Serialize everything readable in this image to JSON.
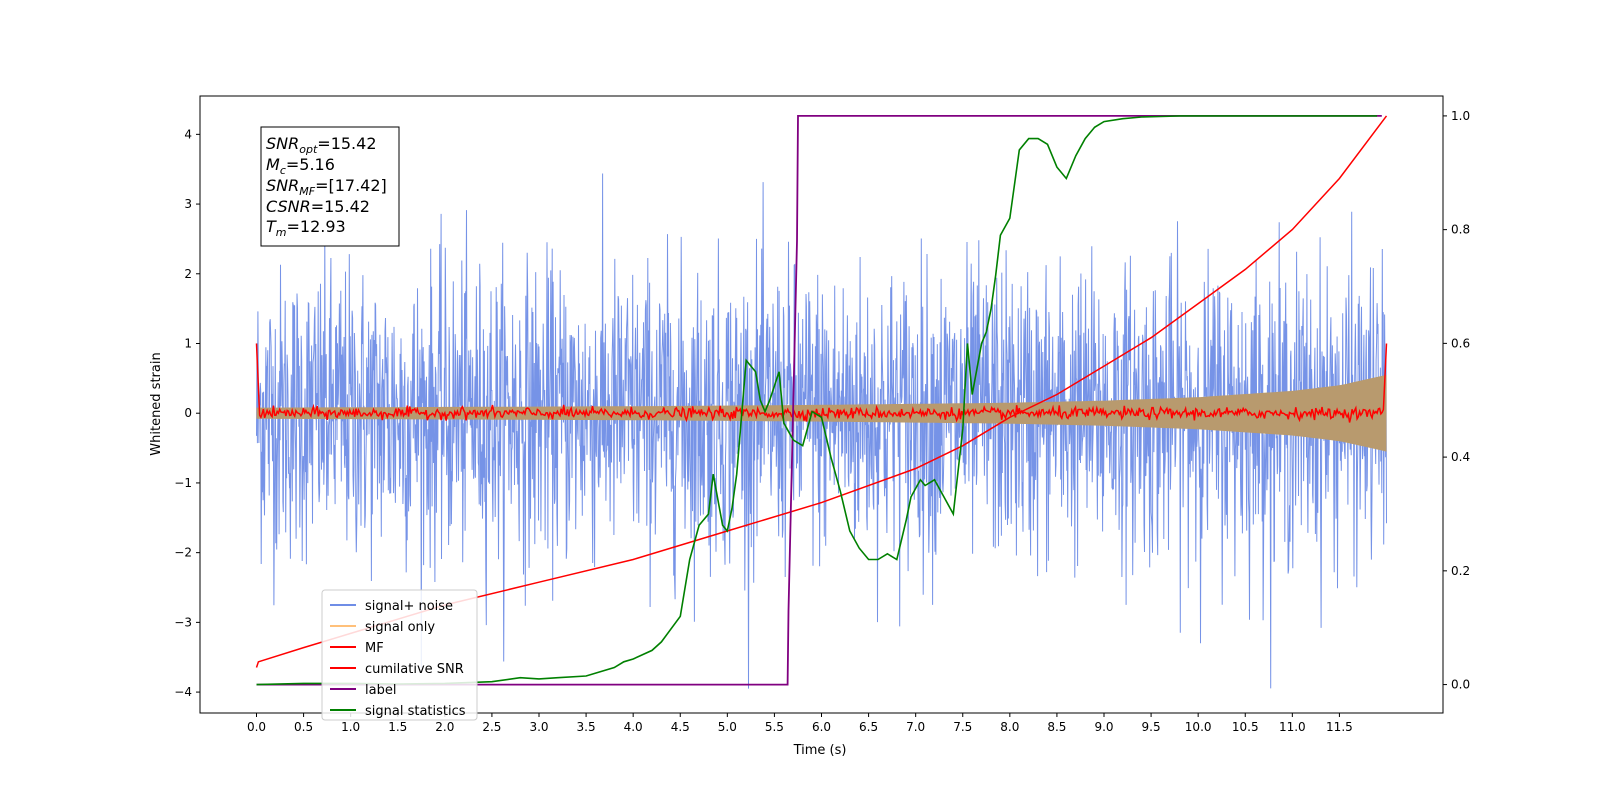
{
  "chart_data": {
    "type": "line",
    "xlabel": "Time (s)",
    "ylabel": "Whitened strain",
    "xlim": [
      -0.6,
      12.6
    ],
    "ylim": [
      -4.3,
      4.55
    ],
    "ylim_right": [
      -0.05,
      1.035
    ],
    "x_ticks": [
      "0.0",
      "0.5",
      "1.0",
      "1.5",
      "2.0",
      "2.5",
      "3.0",
      "3.5",
      "4.0",
      "4.5",
      "5.0",
      "5.5",
      "6.0",
      "6.5",
      "7.0",
      "7.5",
      "8.0",
      "8.5",
      "9.0",
      "9.5",
      "10.0",
      "10.5",
      "11.0",
      "11.5"
    ],
    "y_ticks_left": [
      "4",
      "3",
      "2",
      "1",
      "0",
      "−1",
      "−2",
      "−3",
      "−4"
    ],
    "y_ticks_right": [
      "1.0",
      "0.8",
      "0.6",
      "0.4",
      "0.2",
      "0.0"
    ],
    "annotation": {
      "snr_opt": {
        "label": "SNR",
        "sub": "opt",
        "value": "=15.42"
      },
      "mc": {
        "label": "M",
        "sub": "c",
        "value": "=5.16"
      },
      "snr_mf": {
        "label": "SNR",
        "sub": "MF",
        "value": "=[17.42]"
      },
      "csnr": {
        "label": "CSNR",
        "value": "=15.42"
      },
      "tm": {
        "label": "T",
        "sub": "m",
        "value": "=12.93"
      }
    },
    "legend_position": "lower-left",
    "legend": [
      {
        "name": "signal+ noise",
        "color": "#6f8de6"
      },
      {
        "name": "signal only",
        "color": "#ffc07a"
      },
      {
        "name": "MF",
        "color": "#ff0000"
      },
      {
        "name": "cumilative SNR",
        "color": "#ff0000"
      },
      {
        "name": "label",
        "color": "#800080"
      },
      {
        "name": "signal statistics",
        "color": "#008000"
      }
    ],
    "series": [
      {
        "key": "signal_noise",
        "axis": "left",
        "color": "#6f8de6",
        "noise_std": 1.05,
        "x_range": [
          0.0,
          12.0
        ],
        "approx_extremes": [
          4.15,
          -3.9
        ]
      },
      {
        "key": "signal_only",
        "axis": "left",
        "color": "#b89a6e",
        "envelope": {
          "x": [
            0,
            2,
            4,
            6,
            8,
            9,
            10,
            11,
            11.5,
            12.0
          ],
          "amp": [
            0.08,
            0.09,
            0.1,
            0.12,
            0.15,
            0.18,
            0.23,
            0.32,
            0.4,
            0.55
          ]
        }
      },
      {
        "key": "mf",
        "axis": "left",
        "color": "#ff0000",
        "start_value": 1.0,
        "end_value": 1.0,
        "noise_std": 0.04
      },
      {
        "key": "cumulative_snr",
        "axis": "right",
        "color": "#ff0000",
        "x": [
          0.0,
          0.02,
          0.5,
          1,
          2,
          3,
          4,
          5,
          6,
          7,
          7.5,
          8,
          8.5,
          9,
          9.5,
          10,
          10.5,
          11,
          11.5,
          12.0
        ],
        "y": [
          0.03,
          0.04,
          0.065,
          0.09,
          0.14,
          0.18,
          0.22,
          0.27,
          0.32,
          0.38,
          0.42,
          0.47,
          0.51,
          0.56,
          0.61,
          0.67,
          0.73,
          0.8,
          0.89,
          1.0
        ]
      },
      {
        "key": "label",
        "axis": "right",
        "color": "#800080",
        "x": [
          0.0,
          5.64,
          5.65,
          5.74,
          5.75,
          11.95
        ],
        "y": [
          0.0,
          0.0,
          0.13,
          0.78,
          1.0,
          1.0
        ]
      },
      {
        "key": "signal_statistics",
        "axis": "right",
        "color": "#008000",
        "x": [
          0.0,
          0.5,
          1.0,
          1.5,
          2.0,
          2.5,
          2.8,
          3.0,
          3.2,
          3.5,
          3.8,
          3.9,
          4.0,
          4.2,
          4.3,
          4.5,
          4.6,
          4.7,
          4.8,
          4.85,
          4.95,
          5.0,
          5.05,
          5.1,
          5.2,
          5.3,
          5.35,
          5.4,
          5.45,
          5.55,
          5.6,
          5.7,
          5.8,
          5.9,
          6.0,
          6.1,
          6.2,
          6.3,
          6.4,
          6.5,
          6.6,
          6.7,
          6.8,
          6.9,
          6.95,
          7.05,
          7.1,
          7.2,
          7.3,
          7.4,
          7.5,
          7.55,
          7.6,
          7.7,
          7.75,
          7.8,
          7.85,
          7.9,
          8.0,
          8.1,
          8.2,
          8.3,
          8.4,
          8.5,
          8.6,
          8.7,
          8.8,
          8.9,
          9.0,
          9.2,
          9.4,
          9.6,
          9.8,
          10.0,
          10.5,
          11.0,
          11.5,
          11.9
        ],
        "y": [
          0.0,
          0.002,
          0.002,
          0.001,
          0.002,
          0.005,
          0.012,
          0.01,
          0.012,
          0.015,
          0.03,
          0.04,
          0.045,
          0.06,
          0.075,
          0.12,
          0.22,
          0.28,
          0.3,
          0.37,
          0.28,
          0.27,
          0.31,
          0.37,
          0.57,
          0.55,
          0.5,
          0.48,
          0.5,
          0.55,
          0.46,
          0.43,
          0.42,
          0.48,
          0.47,
          0.4,
          0.34,
          0.27,
          0.24,
          0.22,
          0.22,
          0.23,
          0.22,
          0.29,
          0.33,
          0.36,
          0.35,
          0.36,
          0.33,
          0.3,
          0.45,
          0.6,
          0.51,
          0.6,
          0.62,
          0.66,
          0.72,
          0.79,
          0.82,
          0.94,
          0.96,
          0.96,
          0.95,
          0.91,
          0.89,
          0.93,
          0.96,
          0.98,
          0.99,
          0.995,
          0.998,
          0.999,
          1.0,
          1.0,
          1.0,
          1.0,
          1.0,
          1.0
        ]
      }
    ]
  }
}
